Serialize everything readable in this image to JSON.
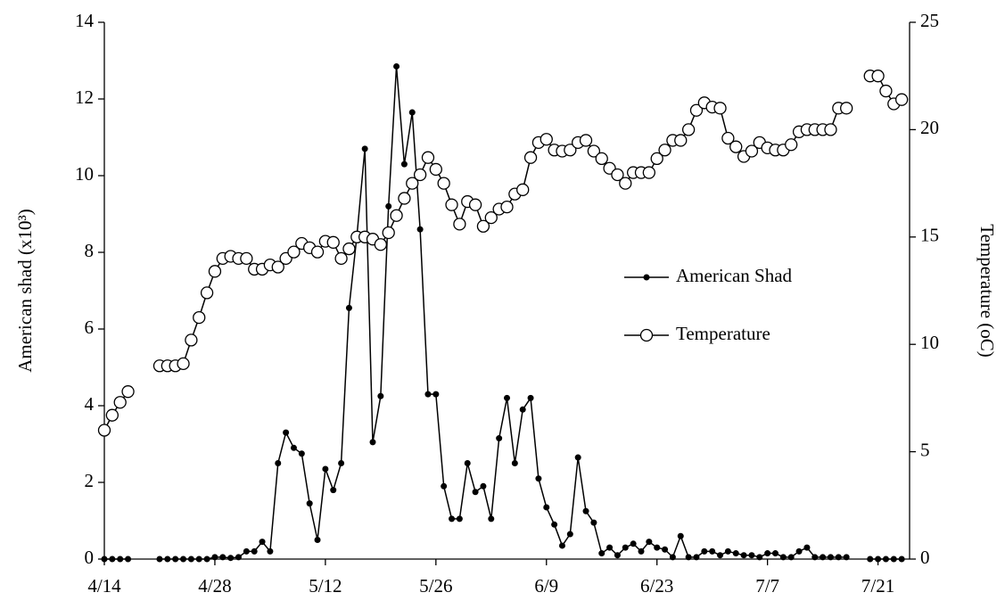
{
  "chart_data": {
    "type": "line",
    "y_label": "American shad (x10³)",
    "y2_label": "Temperature (oC)",
    "legend_position": "center right",
    "x": [
      "4/14",
      "4/15",
      "4/16",
      "4/17",
      "4/18",
      "4/19",
      "4/20",
      "4/21",
      "4/22",
      "4/23",
      "4/24",
      "4/25",
      "4/26",
      "4/27",
      "4/28",
      "4/29",
      "4/30",
      "5/1",
      "5/2",
      "5/3",
      "5/4",
      "5/5",
      "5/6",
      "5/7",
      "5/8",
      "5/9",
      "5/10",
      "5/11",
      "5/12",
      "5/13",
      "5/14",
      "5/15",
      "5/16",
      "5/17",
      "5/18",
      "5/19",
      "5/20",
      "5/21",
      "5/22",
      "5/23",
      "5/24",
      "5/25",
      "5/26",
      "5/27",
      "5/28",
      "5/29",
      "5/30",
      "5/31",
      "6/1",
      "6/2",
      "6/3",
      "6/4",
      "6/5",
      "6/6",
      "6/7",
      "6/8",
      "6/9",
      "6/10",
      "6/11",
      "6/12",
      "6/13",
      "6/14",
      "6/15",
      "6/16",
      "6/17",
      "6/18",
      "6/19",
      "6/20",
      "6/21",
      "6/22",
      "6/23",
      "6/24",
      "6/25",
      "6/26",
      "6/27",
      "6/28",
      "6/29",
      "6/30",
      "7/1",
      "7/2",
      "7/3",
      "7/4",
      "7/5",
      "7/6",
      "7/7",
      "7/8",
      "7/9",
      "7/10",
      "7/11",
      "7/12",
      "7/13",
      "7/14",
      "7/15",
      "7/16",
      "7/17",
      "7/18",
      "7/19",
      "7/20",
      "7/21",
      "7/22",
      "7/23",
      "7/24"
    ],
    "xlim": [
      "4/14",
      "7/25"
    ],
    "xticks": [
      "4/14",
      "4/28",
      "5/12",
      "5/26",
      "6/9",
      "6/23",
      "7/7",
      "7/21"
    ],
    "ylim": [
      0,
      14
    ],
    "yticks": [
      0,
      2,
      4,
      6,
      8,
      10,
      12,
      14
    ],
    "y2lim": [
      0,
      25
    ],
    "y2ticks": [
      0,
      5,
      10,
      15,
      20,
      25
    ],
    "series": [
      {
        "name": "American Shad",
        "color": "#000000",
        "marker": "filled",
        "values": [
          0,
          0,
          0,
          0,
          null,
          null,
          null,
          0,
          0,
          0,
          0,
          0,
          0,
          0,
          0.05,
          0.05,
          0.03,
          0.05,
          0.2,
          0.2,
          0.45,
          0.2,
          2.5,
          3.3,
          2.9,
          2.75,
          1.45,
          0.5,
          2.35,
          1.8,
          2.5,
          6.55,
          8.45,
          10.7,
          3.05,
          4.25,
          9.2,
          12.85,
          10.3,
          11.65,
          8.6,
          4.3,
          4.3,
          1.9,
          1.05,
          1.05,
          2.5,
          1.75,
          1.9,
          1.05,
          3.15,
          4.2,
          2.5,
          3.9,
          4.2,
          2.1,
          1.35,
          0.9,
          0.35,
          0.65,
          2.65,
          1.25,
          0.95,
          0.15,
          0.3,
          0.1,
          0.3,
          0.4,
          0.2,
          0.45,
          0.3,
          0.25,
          0.05,
          0.6,
          0.05,
          0.05,
          0.2,
          0.2,
          0.1,
          0.2,
          0.15,
          0.1,
          0.1,
          0.05,
          0.15,
          0.15,
          0.05,
          0.05,
          0.2,
          0.3,
          0.05,
          0.05,
          0.05,
          0.05,
          0.05,
          null,
          null,
          0,
          0,
          0,
          0,
          0
        ]
      },
      {
        "name": "Temperature",
        "color": "#000000",
        "marker": "open",
        "axis": "y2",
        "values": [
          6.0,
          6.7,
          7.3,
          7.8,
          null,
          null,
          null,
          9.0,
          9.0,
          9.0,
          9.1,
          10.2,
          11.25,
          12.4,
          13.4,
          14.0,
          14.1,
          14.0,
          14.0,
          13.5,
          13.5,
          13.7,
          13.6,
          14.0,
          14.3,
          14.7,
          14.5,
          14.3,
          14.8,
          14.75,
          14.0,
          14.45,
          15.0,
          15.0,
          14.9,
          14.65,
          15.2,
          16.0,
          16.8,
          17.5,
          17.9,
          18.7,
          18.15,
          17.5,
          16.5,
          15.6,
          16.65,
          16.5,
          15.5,
          15.9,
          16.3,
          16.4,
          17.0,
          17.2,
          18.7,
          19.4,
          19.55,
          19.05,
          19.0,
          19.05,
          19.4,
          19.5,
          19.0,
          18.65,
          18.2,
          17.9,
          17.5,
          18.0,
          18.0,
          18.0,
          18.65,
          19.05,
          19.5,
          19.5,
          20.0,
          20.9,
          21.25,
          21.05,
          21.0,
          19.6,
          19.2,
          18.75,
          19.0,
          19.4,
          19.15,
          19.05,
          19.05,
          19.3,
          19.9,
          20.0,
          20.0,
          20.0,
          20.0,
          21.0,
          21.0,
          null,
          null,
          22.5,
          22.5,
          21.8,
          21.2,
          21.4
        ]
      }
    ]
  }
}
